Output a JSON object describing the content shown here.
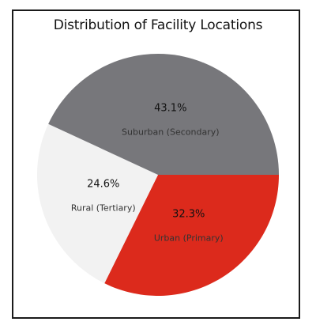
{
  "chart_data": {
    "type": "pie",
    "title": "Distribution of Facility Locations",
    "slices": [
      {
        "label": "Urban (Primary)",
        "value": 32.3,
        "pct_label": "32.3%",
        "color": "#dc2a1c"
      },
      {
        "label": "Rural (Tertiary)",
        "value": 24.6,
        "pct_label": "24.6%",
        "color": "#f2f2f2"
      },
      {
        "label": "Suburban (Secondary)",
        "value": 43.1,
        "pct_label": "43.1%",
        "color": "#77777b"
      }
    ],
    "start_angle_deg": 0,
    "direction": "clockwise",
    "legend": false
  }
}
